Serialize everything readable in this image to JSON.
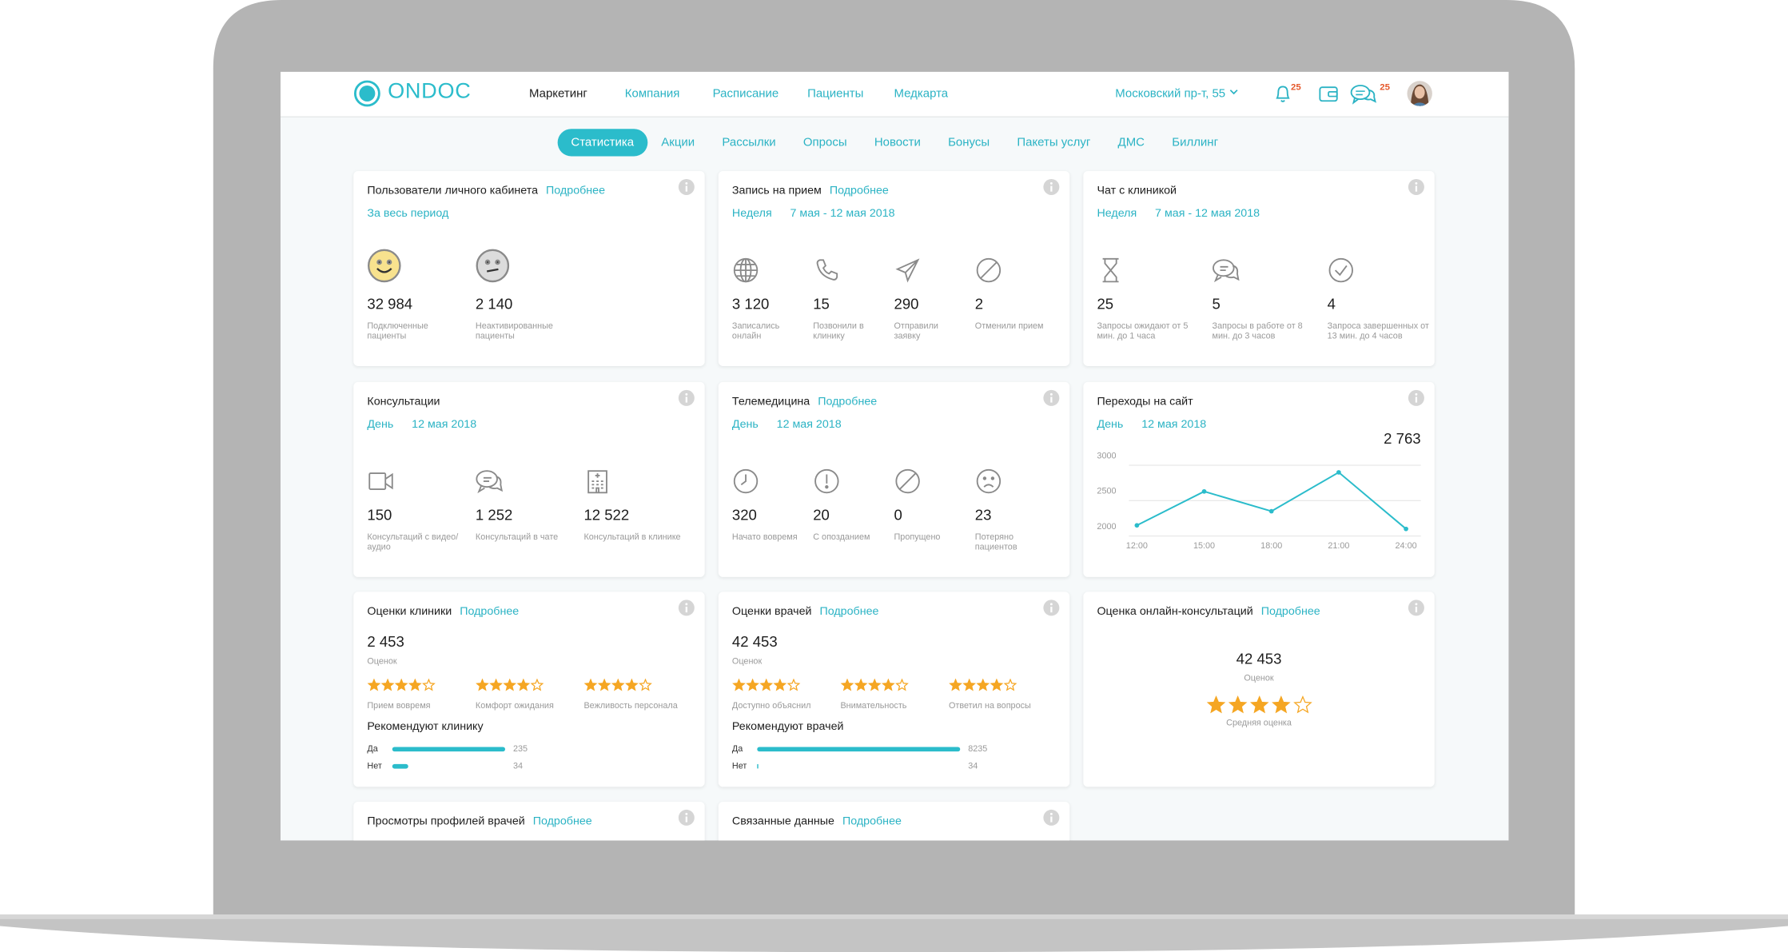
{
  "header": {
    "logo": "ONDOC",
    "nav": [
      "Маркетинг",
      "Компания",
      "Расписание",
      "Пациенты",
      "Медкарта"
    ],
    "address": "Московский пр-т, 55",
    "notifications": 25,
    "messages": 25
  },
  "tabs": [
    "Статистика",
    "Акции",
    "Рассылки",
    "Опросы",
    "Новости",
    "Бонусы",
    "Пакеты услуг",
    "ДМС",
    "Биллинг"
  ],
  "cards": [
    {
      "title": "Пользователи личного кабинета",
      "link": "Подробнее",
      "period": [
        "За весь период"
      ],
      "items": [
        {
          "value": "32 984",
          "label": "Подключенные пациенты"
        },
        {
          "value": "2 140",
          "label": "Неактивированные пациенты"
        }
      ]
    },
    {
      "title": "Запись на прием",
      "link": "Подробнее",
      "period": [
        "Неделя",
        "7 мая - 12 мая 2018"
      ],
      "items": [
        {
          "value": "3 120",
          "label": "Записались онлайн"
        },
        {
          "value": "15",
          "label": "Позвонили в клинику"
        },
        {
          "value": "290",
          "label": "Отправили заявку"
        },
        {
          "value": "2",
          "label": "Отменили прием"
        }
      ]
    },
    {
      "title": "Чат с клиникой",
      "period": [
        "Неделя",
        "7 мая - 12 мая 2018"
      ],
      "items": [
        {
          "value": "25",
          "label": "Запросы ожидают от 5 мин. до 1 часа"
        },
        {
          "value": "5",
          "label": "Запросы в работе от 8 мин. до 3 часов"
        },
        {
          "value": "4",
          "label": "Запроса завершенных от 13 мин. до 4 часов"
        }
      ]
    },
    {
      "title": "Консультации",
      "period": [
        "День",
        "12 мая 2018"
      ],
      "items": [
        {
          "value": "150",
          "label": "Консультаций с видео/аудио"
        },
        {
          "value": "1 252",
          "label": "Консультаций в чате"
        },
        {
          "value": "12 522",
          "label": "Консультаций в клинике"
        }
      ]
    },
    {
      "title": "Телемедицина",
      "link": "Подробнее",
      "period": [
        "День",
        "12 мая 2018"
      ],
      "items": [
        {
          "value": "320",
          "label": "Начато вовремя"
        },
        {
          "value": "20",
          "label": "С опозданием"
        },
        {
          "value": "0",
          "label": "Пропущено"
        },
        {
          "value": "23",
          "label": "Потеряно пациентов"
        }
      ]
    },
    {
      "title": "Переходы на сайт",
      "period": [
        "День",
        "12 мая 2018"
      ],
      "total": "2 763",
      "chart": {
        "type": "line",
        "categories": [
          "12:00",
          "15:00",
          "18:00",
          "21:00",
          "24:00"
        ],
        "values": [
          2150,
          2630,
          2350,
          2900,
          2100
        ],
        "ylim": [
          2000,
          3000
        ],
        "yticks": [
          2000,
          2500,
          3000
        ],
        "color": "#2bbccb",
        "grid": true
      }
    },
    {
      "title": "Оценки клиники",
      "link": "Подробнее",
      "total": "2 453",
      "total_label": "Оценок",
      "ratings": [
        {
          "stars": 4,
          "label": "Прием вовремя"
        },
        {
          "stars": 4,
          "label": "Комфорт ожидания"
        },
        {
          "stars": 4,
          "label": "Вежливость персонала"
        }
      ],
      "recommend_title": "Рекомендуют клинику",
      "recommend": [
        {
          "label": "Да",
          "value": 235
        },
        {
          "label": "Нет",
          "value": 34
        }
      ]
    },
    {
      "title": "Оценки врачей",
      "link": "Подробнее",
      "total": "42 453",
      "total_label": "Оценок",
      "ratings": [
        {
          "stars": 4,
          "label": "Доступно объяснил"
        },
        {
          "stars": 4,
          "label": "Внимательность"
        },
        {
          "stars": 4,
          "label": "Ответил на вопросы"
        }
      ],
      "recommend_title": "Рекомендуют врачей",
      "recommend": [
        {
          "label": "Да",
          "value": 8235
        },
        {
          "label": "Нет",
          "value": 34
        }
      ]
    },
    {
      "title": "Оценка онлайн-консультаций",
      "link": "Подробнее",
      "total": "42 453",
      "total_label": "Оценок",
      "stars": 4,
      "stars_label": "Средняя оценка"
    },
    {
      "title": "Просмотры профилей врачей",
      "link": "Подробнее"
    },
    {
      "title": "Связанные данные",
      "link": "Подробнее"
    }
  ]
}
